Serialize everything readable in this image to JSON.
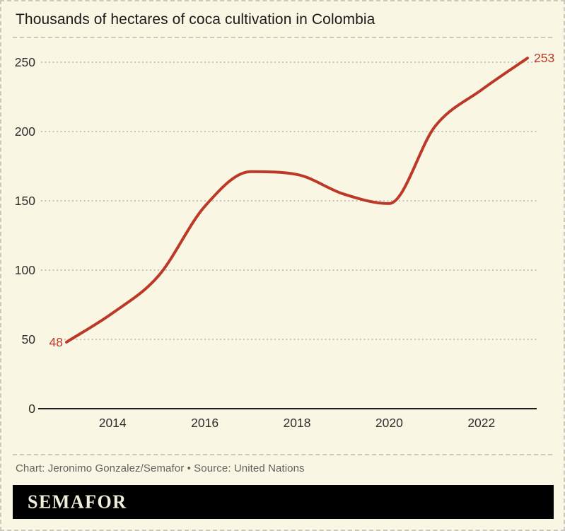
{
  "card": {
    "title": "Thousands of hectares of coca cultivation in Colombia",
    "caption": "Chart: Jeronimo Gonzalez/Semafor • Source: United Nations",
    "logo": "SEMAFOR"
  },
  "colors": {
    "background": "#F9F6E4",
    "line": "#BC3827",
    "gridline": "#B5B2A8",
    "axis_line": "#1C1C1C",
    "title_text": "#1A1A1A",
    "axis_text": "#2D2D2D",
    "caption_text": "#63635E",
    "dashed_border": "#CBCAC0",
    "logo_background": "#000000",
    "logo_text": "#F2EEDC"
  },
  "chart_data": {
    "type": "line",
    "title": "Thousands of hectares of coca cultivation in Colombia",
    "series_name": "Coca cultivation in Colombia (thousands of hectares)",
    "x": [
      2013,
      2014,
      2015,
      2016,
      2017,
      2018,
      2019,
      2020,
      2021,
      2022,
      2023
    ],
    "values": [
      48,
      69,
      96,
      146,
      171,
      169,
      155,
      148,
      204,
      230,
      253
    ],
    "x_ticks": [
      2014,
      2016,
      2018,
      2020,
      2022
    ],
    "y_ticks": [
      0,
      50,
      100,
      150,
      200,
      250
    ],
    "xlabel": "",
    "ylabel": "",
    "ylim": [
      0,
      260
    ],
    "xlim": [
      2013,
      2023
    ],
    "grid": "dashed horizontal",
    "legend": "none",
    "endpoint_labels": {
      "start": "48",
      "end": "253"
    },
    "source": "United Nations",
    "credit": "Chart: Jeronimo Gonzalez/Semafor"
  }
}
